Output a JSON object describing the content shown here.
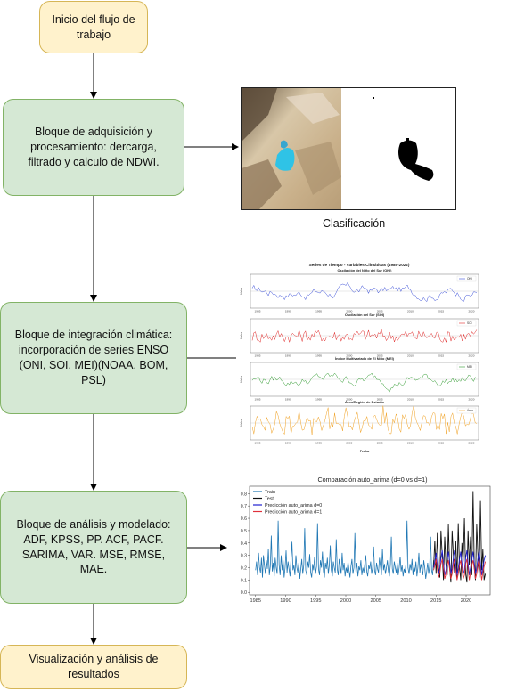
{
  "nodes": {
    "start": "Inicio del flujo de trabajo",
    "acquisition": "Bloque de adquisición y procesamiento: dercarga, filtrado y calculo de NDWI.",
    "climate": "Bloque de integración climática: incorporación de series ENSO (ONI, SOI, MEI)(NOAA, BOM, PSL)",
    "analysis": "Bloque de análisis y modelado: ADF, KPSS, PP. ACF, PACF. SARIMA, VAR. MSE, RMSE, MAE.",
    "results": "Visualización y análisis de resultados"
  },
  "classification_caption": "Clasificación",
  "climate_figure": {
    "title": "Series de Tiempo - Variables Climáticas (1985-2022)",
    "panels": [
      {
        "title": "Oscilación del Niño del Sur (ONI)",
        "legend": "ONI",
        "color": "#3b4fd8",
        "ylabel": "Valor"
      },
      {
        "title": "Oscilación del Sur (SOI)",
        "legend": "SOI",
        "color": "#e02828",
        "ylabel": "Valor"
      },
      {
        "title": "Índice Multivariado de El Niño (MEI)",
        "legend": "MEI",
        "color": "#2e9a2e",
        "ylabel": "Valor"
      },
      {
        "title": "Área/Región de Estudio",
        "legend": "Área",
        "color": "#f0a020",
        "ylabel": "Valor"
      }
    ],
    "xticks": [
      "1985",
      "1990",
      "1995",
      "2000",
      "2005",
      "2010",
      "2015",
      "2020"
    ],
    "xlabel": "Fecha"
  },
  "chart_data": {
    "type": "line",
    "title": "Comparación auto_arima (d=0 vs d=1)",
    "xlabel": "",
    "ylabel": "",
    "xlim": [
      1984,
      2024
    ],
    "ylim": [
      -0.02,
      0.86
    ],
    "xticks": [
      1985,
      1990,
      1995,
      2000,
      2005,
      2010,
      2015,
      2020
    ],
    "yticks": [
      0.0,
      0.1,
      0.2,
      0.3,
      0.4,
      0.5,
      0.6,
      0.7,
      0.8
    ],
    "legend_position": "top-left",
    "series": [
      {
        "name": "Train",
        "color": "#1f77b4",
        "x_range": [
          1985,
          2014.6
        ],
        "values": [
          0.18,
          0.25,
          0.14,
          0.32,
          0.2,
          0.16,
          0.28,
          0.12,
          0.3,
          0.22,
          0.15,
          0.26,
          0.19,
          0.35,
          0.14,
          0.21,
          0.46,
          0.17,
          0.24,
          0.13,
          0.28,
          0.2,
          0.15,
          0.58,
          0.22,
          0.14,
          0.3,
          0.18,
          0.26,
          0.12,
          0.2,
          0.34,
          0.16,
          0.25,
          0.19,
          0.13,
          0.27,
          0.41,
          0.18,
          0.22,
          0.14,
          0.3,
          0.2,
          0.16,
          0.24,
          0.11,
          0.19,
          0.27,
          0.15,
          0.22,
          0.52,
          0.18,
          0.14,
          0.25,
          0.2,
          0.31,
          0.16,
          0.12,
          0.23,
          0.18,
          0.29,
          0.15,
          0.21,
          0.56,
          0.19,
          0.14,
          0.26,
          0.2,
          0.33,
          0.17,
          0.12,
          0.24,
          0.19,
          0.28,
          0.15,
          0.22,
          0.38,
          0.18,
          0.13,
          0.25,
          0.2,
          0.16,
          0.43,
          0.19,
          0.14,
          0.27,
          0.21,
          0.15,
          0.32,
          0.18,
          0.24,
          0.13,
          0.2,
          0.16,
          0.25,
          0.18,
          0.12,
          0.21,
          0.27,
          0.15,
          0.2,
          0.48,
          0.17,
          0.24,
          0.13,
          0.21,
          0.18,
          0.26,
          0.14,
          0.2,
          0.16,
          0.23,
          0.3,
          0.17,
          0.13,
          0.22,
          0.19,
          0.25,
          0.15,
          0.2,
          0.37,
          0.18,
          0.14,
          0.24,
          0.19,
          0.16,
          0.28,
          0.21,
          0.14,
          0.35,
          0.18,
          0.23,
          0.15,
          0.2,
          0.26,
          0.17,
          0.13,
          0.22,
          0.45,
          0.19,
          0.15,
          0.25,
          0.2,
          0.16,
          0.24,
          0.14,
          0.2,
          0.29,
          0.17,
          0.22,
          0.13,
          0.19,
          0.16,
          0.24,
          0.58,
          0.2,
          0.15,
          0.23,
          0.18,
          0.27,
          0.14,
          0.21,
          0.17,
          0.25,
          0.13,
          0.2,
          0.32,
          0.16,
          0.23,
          0.19,
          0.14,
          0.26,
          0.2,
          0.11,
          0.17,
          0.24,
          0.15,
          0.21,
          0.45,
          0.18,
          0.14,
          0.26
        ]
      },
      {
        "name": "Test",
        "color": "#111111",
        "x_range": [
          2014.6,
          2023.2
        ],
        "values": [
          0.2,
          0.42,
          0.15,
          0.48,
          0.18,
          0.12,
          0.5,
          0.3,
          0.1,
          0.45,
          0.22,
          0.14,
          0.55,
          0.2,
          0.08,
          0.5,
          0.3,
          0.16,
          0.42,
          0.12,
          0.56,
          0.2,
          0.1,
          0.4,
          0.25,
          0.6,
          0.15,
          0.08,
          0.5,
          0.22,
          0.45,
          0.14,
          0.82,
          0.2,
          0.1,
          0.55,
          0.3,
          0.12,
          0.74,
          0.18,
          0.35,
          0.1,
          0.15
        ]
      },
      {
        "name": "Predicción auto_arima d=0",
        "color": "#1f1fd0",
        "x_range": [
          2014.6,
          2023.2
        ],
        "values": [
          0.2,
          0.25,
          0.32,
          0.22,
          0.15,
          0.2,
          0.28,
          0.34,
          0.24,
          0.14,
          0.18,
          0.27,
          0.33,
          0.25,
          0.15,
          0.19,
          0.28,
          0.34,
          0.23,
          0.14,
          0.19,
          0.27,
          0.33,
          0.24,
          0.15,
          0.18,
          0.28,
          0.34,
          0.24,
          0.14,
          0.2,
          0.27,
          0.33,
          0.24,
          0.15,
          0.19,
          0.28,
          0.34,
          0.23,
          0.14,
          0.2,
          0.26,
          0.3
        ]
      },
      {
        "name": "Predicción auto_arima d=1",
        "color": "#e0303a",
        "x_range": [
          2014.6,
          2023.2
        ],
        "values": [
          0.18,
          0.22,
          0.27,
          0.19,
          0.12,
          0.16,
          0.23,
          0.27,
          0.2,
          0.11,
          0.15,
          0.22,
          0.26,
          0.19,
          0.11,
          0.15,
          0.23,
          0.27,
          0.18,
          0.1,
          0.15,
          0.22,
          0.26,
          0.19,
          0.11,
          0.14,
          0.23,
          0.27,
          0.19,
          0.1,
          0.16,
          0.22,
          0.26,
          0.19,
          0.11,
          0.15,
          0.23,
          0.27,
          0.18,
          0.1,
          0.16,
          0.21,
          0.25
        ]
      }
    ]
  }
}
